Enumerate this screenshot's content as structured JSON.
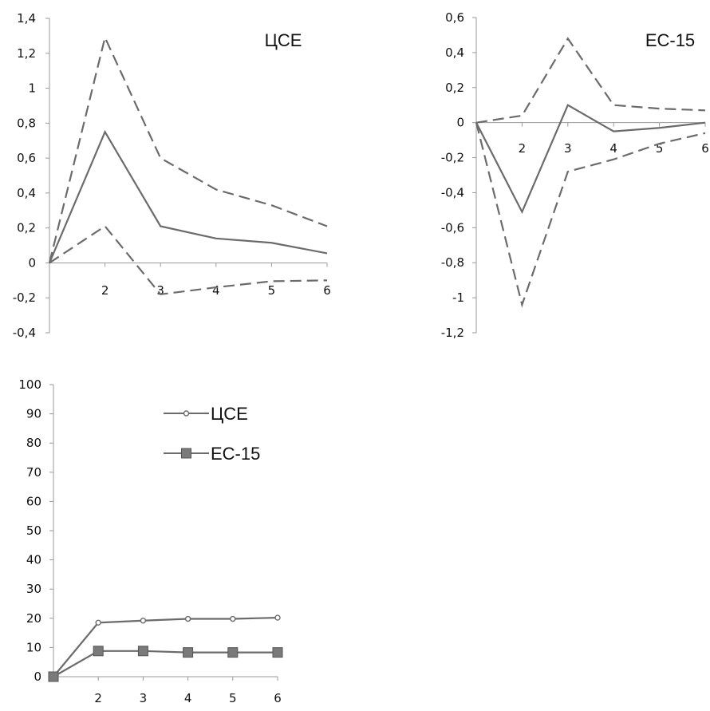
{
  "chart_data": [
    {
      "type": "line",
      "title": "ЦСЕ",
      "x": [
        1,
        2,
        3,
        4,
        5,
        6
      ],
      "x_tick_labels": [
        "2",
        "3",
        "4",
        "5",
        "6"
      ],
      "y_tick_labels": [
        "1,4",
        "1,2",
        "1",
        "0,8",
        "0,6",
        "0,4",
        "0,2",
        "0",
        "-0,2",
        "-0,4"
      ],
      "ylim": [
        -0.4,
        1.4
      ],
      "grid": false,
      "series": [
        {
          "style": "solid",
          "values": [
            0,
            0.75,
            0.21,
            0.14,
            0.115,
            0.055
          ]
        },
        {
          "style": "dashed",
          "values": [
            0,
            1.29,
            0.6,
            0.42,
            0.33,
            0.21
          ]
        },
        {
          "style": "dashed",
          "values": [
            0,
            0.21,
            -0.18,
            -0.14,
            -0.105,
            -0.1
          ]
        }
      ],
      "color": "#6b6b6b"
    },
    {
      "type": "line",
      "title": "ЕС-15",
      "x": [
        1,
        2,
        3,
        4,
        5,
        6
      ],
      "x_tick_labels": [
        "2",
        "3",
        "4",
        "5",
        "6"
      ],
      "y_tick_labels": [
        "0,6",
        "0,4",
        "0,2",
        "0",
        "-0,2",
        "-0,4",
        "-0,6",
        "-0,8",
        "-1",
        "-1,2"
      ],
      "ylim": [
        -1.2,
        0.6
      ],
      "grid": false,
      "series": [
        {
          "style": "solid",
          "values": [
            0,
            -0.51,
            0.1,
            -0.05,
            -0.03,
            0.0
          ]
        },
        {
          "style": "dashed",
          "values": [
            0,
            0.04,
            0.48,
            0.1,
            0.08,
            0.07
          ]
        },
        {
          "style": "dashed",
          "values": [
            0,
            -1.04,
            -0.28,
            -0.21,
            -0.12,
            -0.06
          ]
        }
      ],
      "color": "#6b6b6b"
    },
    {
      "type": "line",
      "title": "",
      "x": [
        1,
        2,
        3,
        4,
        5,
        6
      ],
      "x_tick_labels": [
        "2",
        "3",
        "4",
        "5",
        "6"
      ],
      "y_tick_labels": [
        "100",
        "90",
        "80",
        "70",
        "60",
        "50",
        "40",
        "30",
        "20",
        "10",
        "0"
      ],
      "ylim": [
        0,
        100
      ],
      "grid": false,
      "legend_position": "top-center",
      "series": [
        {
          "name": "ЦСЕ",
          "marker": "circle",
          "values": [
            0,
            18.5,
            19.2,
            19.8,
            19.8,
            20.2
          ]
        },
        {
          "name": "ЕС-15",
          "marker": "square",
          "values": [
            0,
            8.8,
            8.8,
            8.3,
            8.3,
            8.3
          ]
        }
      ],
      "color": "#6b6b6b",
      "marker_fill": "#7a7a7a"
    }
  ]
}
